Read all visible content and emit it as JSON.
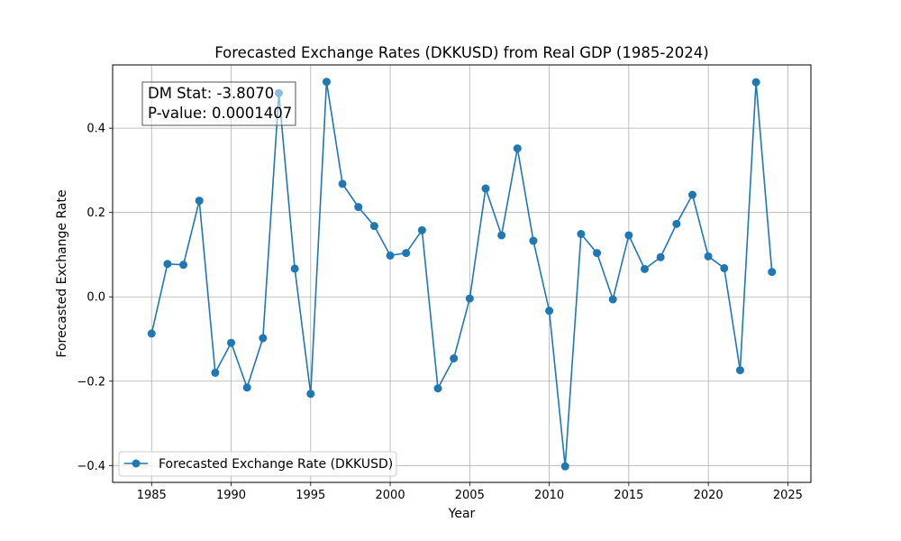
{
  "chart_data": {
    "type": "line",
    "title": "Forecasted Exchange Rates (DKKUSD) from Real GDP (1985-2024)",
    "xlabel": "Year",
    "ylabel": "Forecasted Exchange Rate",
    "xlim": [
      1982.55,
      2026.45
    ],
    "ylim": [
      -0.44,
      0.55
    ],
    "xticks": [
      1985,
      1990,
      1995,
      2000,
      2005,
      2010,
      2015,
      2020,
      2025
    ],
    "yticks": [
      -0.4,
      -0.2,
      0.0,
      0.2,
      0.4
    ],
    "ytick_labels": [
      "−0.4",
      "−0.2",
      "0.0",
      "0.2",
      "0.4"
    ],
    "grid": true,
    "legend_position": "lower left",
    "series": [
      {
        "name": "Forecasted Exchange Rate (DKKUSD)",
        "color": "#1f77b4",
        "marker": "circle",
        "x": [
          1985,
          1986,
          1987,
          1988,
          1989,
          1990,
          1991,
          1992,
          1993,
          1994,
          1995,
          1996,
          1997,
          1998,
          1999,
          2000,
          2001,
          2002,
          2003,
          2004,
          2005,
          2006,
          2007,
          2008,
          2009,
          2010,
          2011,
          2012,
          2013,
          2014,
          2015,
          2016,
          2017,
          2018,
          2019,
          2020,
          2021,
          2022,
          2023,
          2024
        ],
        "y": [
          -0.087,
          0.078,
          0.076,
          0.228,
          -0.18,
          -0.109,
          -0.215,
          -0.098,
          0.483,
          0.067,
          -0.23,
          0.51,
          0.268,
          0.213,
          0.168,
          0.098,
          0.104,
          0.158,
          -0.217,
          -0.146,
          -0.004,
          0.257,
          0.146,
          0.352,
          0.133,
          -0.033,
          -0.402,
          0.149,
          0.104,
          -0.006,
          0.146,
          0.066,
          0.094,
          0.173,
          0.242,
          0.096,
          0.068,
          -0.174,
          0.509,
          0.059
        ]
      }
    ],
    "annotations": [
      {
        "line1": "DM Stat: -3.8070",
        "line2": "P-value: 0.0001407",
        "placement": "upper left"
      }
    ]
  }
}
